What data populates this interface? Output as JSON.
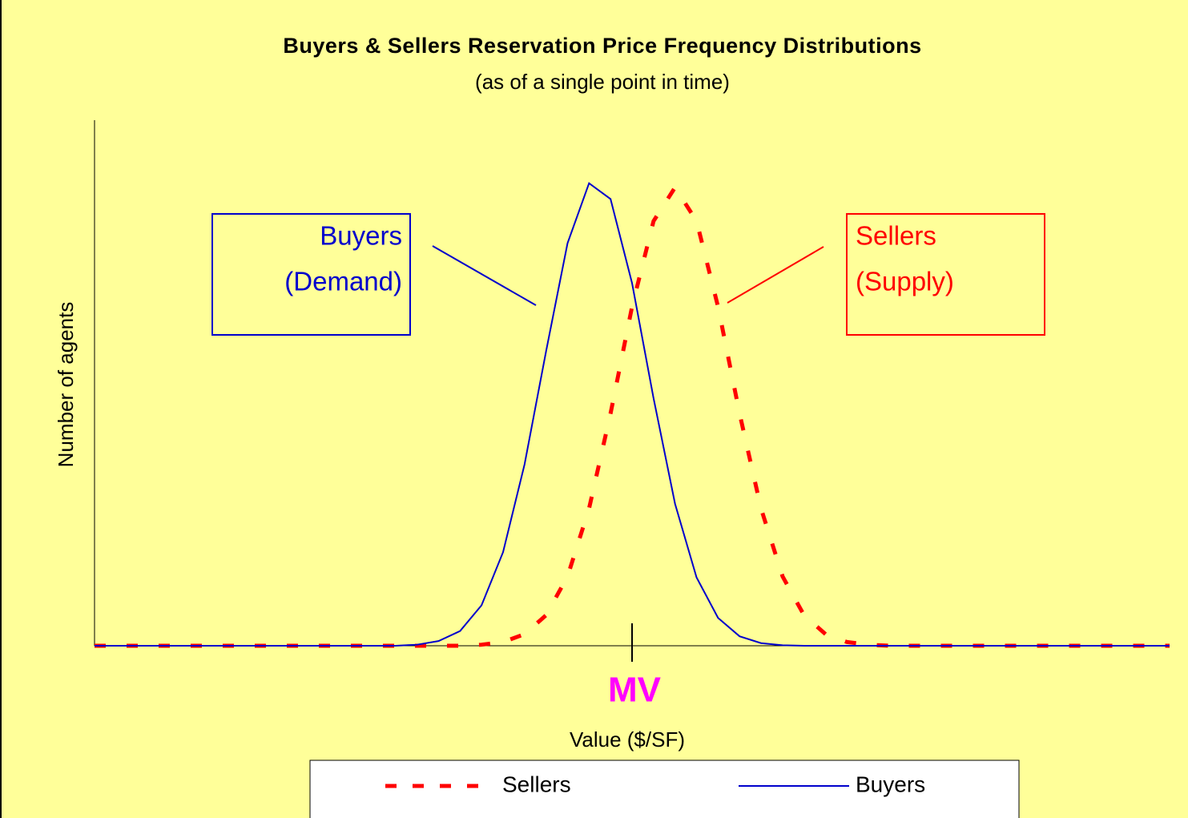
{
  "chart_data": {
    "type": "line",
    "title": "Buyers & Sellers Reservation Price Frequency Distributions",
    "subtitle": "(as of a single point in time)",
    "x_label": "Value ($/SF)",
    "y_label": "Number of agents",
    "xlim": [
      0,
      100
    ],
    "ylim": [
      0,
      100
    ],
    "x": [
      0,
      2,
      4,
      6,
      8,
      10,
      12,
      14,
      16,
      18,
      20,
      22,
      24,
      26,
      28,
      30,
      32,
      34,
      36,
      38,
      40,
      42,
      44,
      46,
      48,
      50,
      52,
      54,
      56,
      58,
      60,
      62,
      64,
      66,
      68,
      70,
      72,
      74,
      76,
      78,
      80,
      82,
      84,
      86,
      88,
      90,
      92,
      94,
      96,
      98,
      100
    ],
    "series": [
      {
        "name": "Sellers",
        "color": "#ff0000",
        "dashed": true,
        "values": [
          0,
          0,
          0,
          0,
          0,
          0,
          0,
          0,
          0,
          0,
          0,
          0,
          0,
          0,
          0,
          0,
          0,
          0,
          0.2,
          0.7,
          2.2,
          5.8,
          13.2,
          26.1,
          44.2,
          64.5,
          80.8,
          87.2,
          80.8,
          64.5,
          44.2,
          26.1,
          13.2,
          5.8,
          2.2,
          0.7,
          0.2,
          0,
          0,
          0,
          0,
          0,
          0,
          0,
          0,
          0,
          0,
          0,
          0,
          0,
          0
        ]
      },
      {
        "name": "Buyers",
        "color": "#0000cc",
        "dashed": false,
        "values": [
          0,
          0,
          0,
          0,
          0,
          0,
          0,
          0,
          0,
          0,
          0,
          0,
          0,
          0,
          0,
          0.2,
          0.9,
          2.8,
          7.7,
          17.8,
          34.5,
          56.0,
          76.6,
          88.0,
          85.0,
          69.0,
          47.1,
          27.0,
          13.0,
          5.3,
          1.8,
          0.5,
          0.1,
          0,
          0,
          0,
          0,
          0,
          0,
          0,
          0,
          0,
          0,
          0,
          0,
          0,
          0,
          0,
          0,
          0,
          0
        ]
      }
    ],
    "annotations": [
      {
        "lines": [
          "Buyers",
          "(Demand)"
        ],
        "series": 1
      },
      {
        "lines": [
          "Sellers",
          "(Supply)"
        ],
        "series": 0
      }
    ],
    "marker": {
      "text": "MV",
      "x": 50,
      "color": "#ff00ff"
    }
  }
}
